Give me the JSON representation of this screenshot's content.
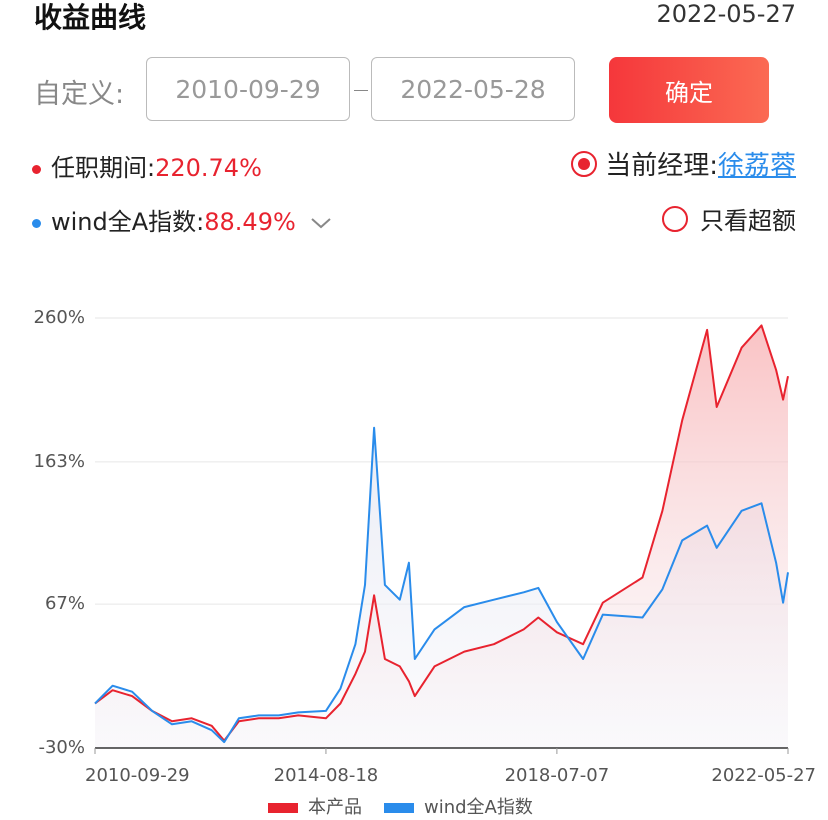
{
  "header": {
    "title": "收益曲线",
    "date": "2022-05-27"
  },
  "filter": {
    "label": "自定义:",
    "start": "2010-09-29",
    "end": "2022-05-28",
    "button": "确定"
  },
  "stats": {
    "tenure_label": "任职期间:",
    "tenure_value": "220.74%",
    "manager_label": "当前经理:",
    "manager": "徐荔蓉",
    "index_label": "wind全A指数:",
    "index_value": "88.49%",
    "excess": "只看超额"
  },
  "chart_data": {
    "type": "line",
    "x": [
      "2010-09-29",
      "2011-01-15",
      "2011-05-15",
      "2011-09-15",
      "2012-01-15",
      "2012-05-15",
      "2012-09-15",
      "2012-12-01",
      "2013-03-01",
      "2013-07-01",
      "2013-11-01",
      "2014-03-01",
      "2014-08-18",
      "2014-11-15",
      "2015-02-15",
      "2015-04-15",
      "2015-06-10",
      "2015-08-15",
      "2015-11-15",
      "2016-01-10",
      "2016-02-15",
      "2016-06-15",
      "2016-12-15",
      "2017-06-15",
      "2017-12-15",
      "2018-03-15",
      "2018-07-07",
      "2018-12-15",
      "2019-04-15",
      "2019-12-15",
      "2020-04-15",
      "2020-08-15",
      "2021-01-15",
      "2021-03-15",
      "2021-08-15",
      "2021-12-15",
      "2022-03-15",
      "2022-04-27",
      "2022-05-27"
    ],
    "series": [
      {
        "name": "本产品",
        "color": "#e8232f",
        "values": [
          0,
          9,
          5,
          -5,
          -12,
          -10,
          -15,
          -25,
          -12,
          -10,
          -10,
          -8,
          -10,
          0,
          20,
          35,
          73,
          30,
          25,
          15,
          5,
          25,
          35,
          40,
          50,
          58,
          48,
          40,
          68,
          85,
          130,
          191,
          252,
          200,
          240,
          255,
          225,
          205,
          220.74
        ]
      },
      {
        "name": "wind全A指数",
        "color": "#2a8ceb",
        "values": [
          0,
          12,
          8,
          -5,
          -14,
          -12,
          -18,
          -26,
          -10,
          -8,
          -8,
          -6,
          -5,
          10,
          40,
          80,
          186,
          80,
          70,
          95,
          30,
          50,
          65,
          70,
          75,
          78,
          55,
          30,
          60,
          58,
          77,
          110,
          120,
          105,
          130,
          135,
          95,
          68,
          88.49
        ]
      }
    ],
    "xlim": [
      "2010-09-29",
      "2022-05-27"
    ],
    "xticks": [
      "2010-09-29",
      "2014-08-18",
      "2018-07-07",
      "2022-05-27"
    ],
    "ylim": [
      -30,
      260
    ],
    "yticks": [
      {
        "value": -30,
        "label": "-30%"
      },
      {
        "value": 67,
        "label": "67%"
      },
      {
        "value": 163,
        "label": "163%"
      },
      {
        "value": 260,
        "label": "260%"
      }
    ],
    "grid": true
  }
}
